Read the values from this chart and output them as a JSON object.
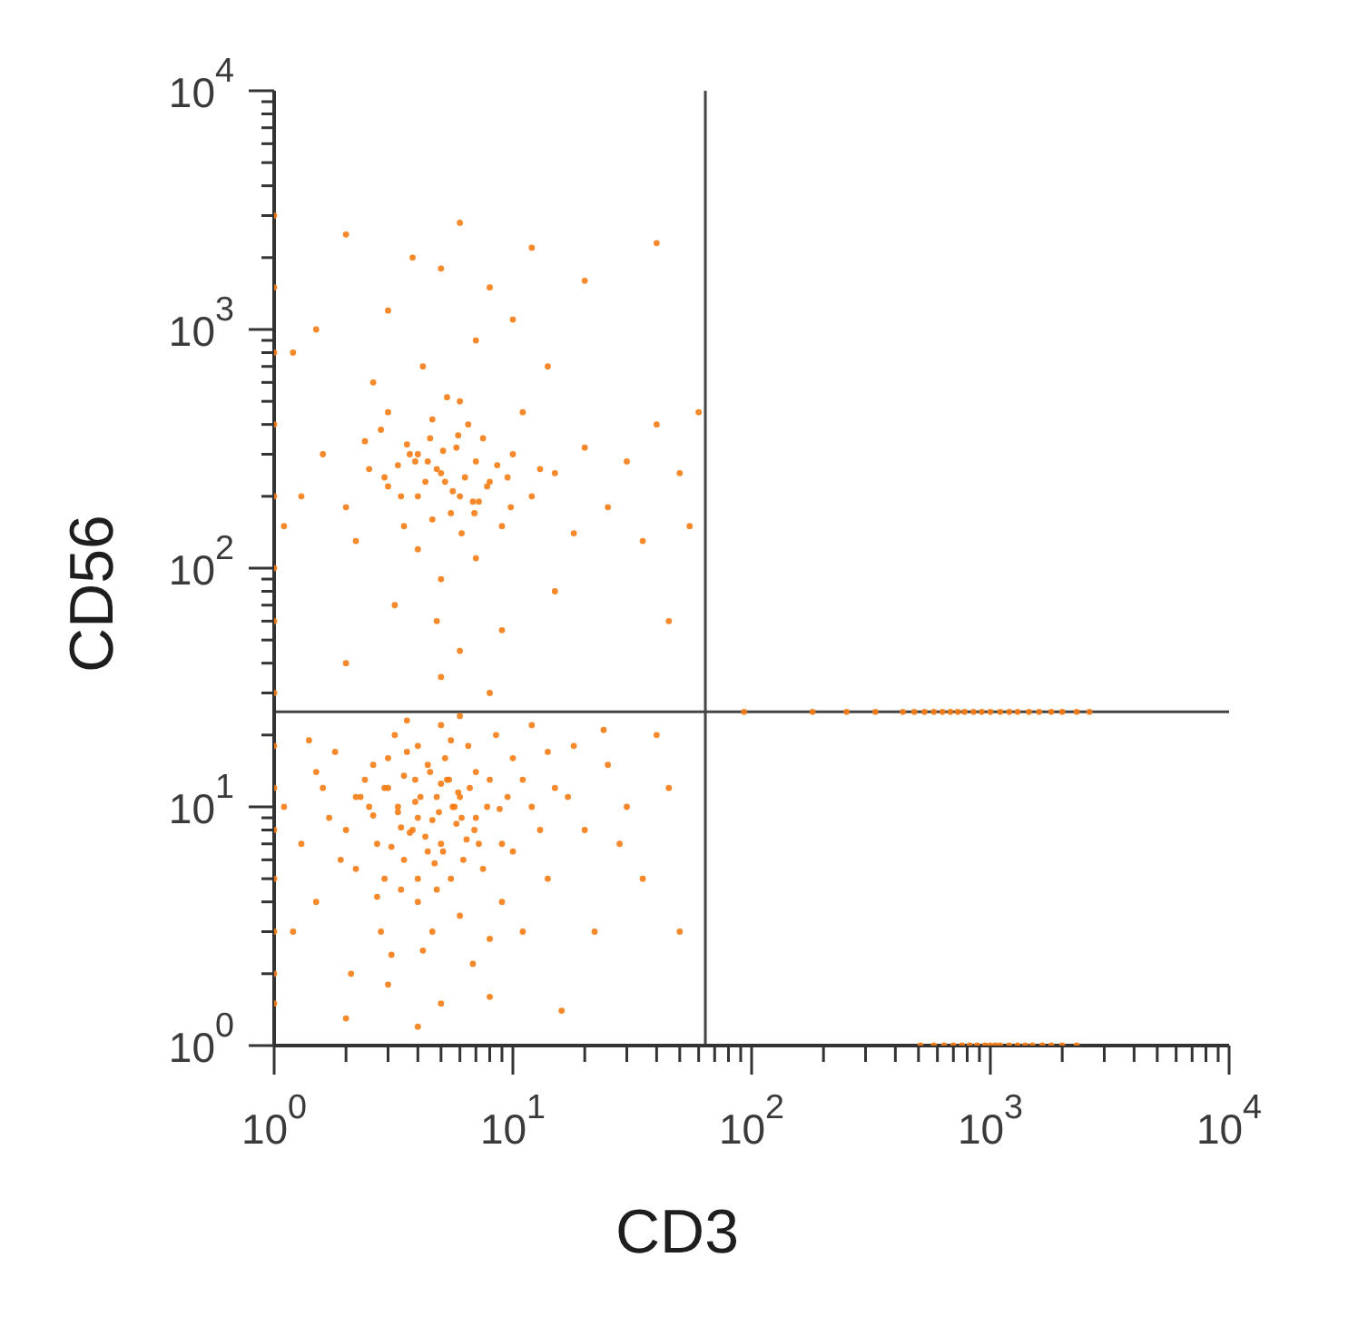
{
  "chart_data": {
    "type": "scatter",
    "xlabel": "CD3",
    "ylabel": "CD56",
    "log": "xy",
    "marker": "circle",
    "color": "#f57c14",
    "xlim": [
      1,
      10000
    ],
    "ylim": [
      1,
      10000
    ],
    "xticks": [
      {
        "value": 1,
        "label": "10$^{0}$"
      },
      {
        "value": 2,
        "label": null
      },
      {
        "value": 3,
        "label": null
      },
      {
        "value": 4,
        "label": null
      },
      {
        "value": 5,
        "label": null
      },
      {
        "value": 6,
        "label": null
      },
      {
        "value": 7,
        "label": null
      },
      {
        "value": 8,
        "label": null
      },
      {
        "value": 9,
        "label": null
      },
      {
        "value": 10,
        "label": "10$^{1}$"
      },
      {
        "value": 20,
        "label": null
      },
      {
        "value": 30,
        "label": null
      },
      {
        "value": 40,
        "label": null
      },
      {
        "value": 50,
        "label": null
      },
      {
        "value": 60,
        "label": null
      },
      {
        "value": 70,
        "label": null
      },
      {
        "value": 80,
        "label": null
      },
      {
        "value": 90,
        "label": null
      },
      {
        "value": 100,
        "label": "10$^{2}$"
      },
      {
        "value": 200,
        "label": null
      },
      {
        "value": 300,
        "label": null
      },
      {
        "value": 400,
        "label": null
      },
      {
        "value": 500,
        "label": null
      },
      {
        "value": 600,
        "label": null
      },
      {
        "value": 700,
        "label": null
      },
      {
        "value": 800,
        "label": null
      },
      {
        "value": 900,
        "label": null
      },
      {
        "value": 1000,
        "label": "10$^{3}$"
      },
      {
        "value": 2000,
        "label": null
      },
      {
        "value": 3000,
        "label": null
      },
      {
        "value": 4000,
        "label": null
      },
      {
        "value": 5000,
        "label": null
      },
      {
        "value": 6000,
        "label": null
      },
      {
        "value": 7000,
        "label": null
      },
      {
        "value": 8000,
        "label": null
      },
      {
        "value": 9000,
        "label": null
      },
      {
        "value": 10000,
        "label": "10$^{4}$"
      }
    ],
    "yticks": [
      {
        "value": 1,
        "label": "10$^{0}$"
      },
      {
        "value": 2,
        "label": null
      },
      {
        "value": 3,
        "label": null
      },
      {
        "value": 4,
        "label": null
      },
      {
        "value": 5,
        "label": null
      },
      {
        "value": 6,
        "label": null
      },
      {
        "value": 7,
        "label": null
      },
      {
        "value": 8,
        "label": null
      },
      {
        "value": 9,
        "label": null
      },
      {
        "value": 10,
        "label": "10$^{1}$"
      },
      {
        "value": 20,
        "label": null
      },
      {
        "value": 30,
        "label": null
      },
      {
        "value": 40,
        "label": null
      },
      {
        "value": 50,
        "label": null
      },
      {
        "value": 60,
        "label": null
      },
      {
        "value": 70,
        "label": null
      },
      {
        "value": 80,
        "label": null
      },
      {
        "value": 90,
        "label": null
      },
      {
        "value": 100,
        "label": "10$^{2}$"
      },
      {
        "value": 200,
        "label": null
      },
      {
        "value": 300,
        "label": null
      },
      {
        "value": 400,
        "label": null
      },
      {
        "value": 500,
        "label": null
      },
      {
        "value": 600,
        "label": null
      },
      {
        "value": 700,
        "label": null
      },
      {
        "value": 800,
        "label": null
      },
      {
        "value": 900,
        "label": null
      },
      {
        "value": 1000,
        "label": "10$^{3}$"
      },
      {
        "value": 2000,
        "label": null
      },
      {
        "value": 3000,
        "label": null
      },
      {
        "value": 4000,
        "label": null
      },
      {
        "value": 5000,
        "label": null
      },
      {
        "value": 6000,
        "label": null
      },
      {
        "value": 7000,
        "label": null
      },
      {
        "value": 8000,
        "label": null
      },
      {
        "value": 9000,
        "label": null
      },
      {
        "value": 10000,
        "label": "10$^{4}$"
      }
    ],
    "x": [
      4,
      3,
      5,
      2.5,
      6,
      3.5,
      4.5,
      2,
      7,
      5.5,
      3,
      8,
      1.6,
      4,
      6.5,
      2.2,
      9,
      3.2,
      5,
      12,
      1.3,
      2.8,
      6,
      10,
      15,
      1.8,
      4.2,
      7.5,
      3.8,
      4.8,
      2.4,
      5.2,
      8.5,
      1.1,
      3,
      5,
      6.8,
      20,
      25,
      14,
      18,
      11,
      1.5,
      2.1,
      9.5,
      4.4,
      3.3,
      5.8,
      2.7,
      7,
      1.4,
      12,
      30,
      35,
      40,
      22,
      16,
      4,
      2,
      8,
      6,
      3.6,
      1.2,
      10,
      13,
      2.6,
      5.4,
      4.6,
      3.4,
      6.2,
      7.8,
      1.7,
      2.3,
      9,
      11,
      17,
      28,
      45,
      50,
      4,
      2.9,
      5.6,
      3.9,
      4.3,
      6.6,
      1.9,
      3.1,
      8,
      14,
      24,
      3.7,
      4.9,
      5.1,
      2.9,
      4.1,
      3.4,
      6.1,
      5.3,
      4.7,
      3.9,
      2.6,
      7.2,
      4.4,
      5.9,
      3.1,
      4.6,
      5.7,
      3.5,
      6.4,
      2.2,
      4,
      5,
      3.6,
      6.9,
      2.7,
      8.8,
      1.5,
      4.8,
      3.3,
      5.5,
      5,
      4,
      6,
      3,
      7,
      5.5,
      4.5,
      2.5,
      8,
      3.5,
      6.5,
      10,
      12,
      2,
      9,
      4,
      6,
      15,
      20,
      1.6,
      3,
      5,
      7,
      2.2,
      11,
      25,
      30,
      1.3,
      4.2,
      3,
      5,
      2,
      8,
      6,
      1.5,
      10,
      3.8,
      7,
      2.6,
      14,
      4.8,
      3.2,
      6,
      9,
      2,
      15,
      5,
      8,
      35,
      45,
      40,
      50,
      18,
      4,
      5.8,
      3.3,
      6.8,
      4.6,
      7.5,
      2.8,
      9.5,
      5.2,
      4.4,
      3.6,
      1.1,
      1.2,
      12,
      20,
      40,
      60,
      55,
      5.6,
      4.8,
      6.3,
      3.9,
      7.2,
      5.1,
      4.3,
      6.9,
      3.4,
      5.9,
      8.6,
      2.9,
      4.6,
      6.1,
      7.8,
      3.7,
      5.3,
      9.8,
      2.4,
      13,
      1,
      1,
      1,
      1,
      1,
      1,
      1,
      1,
      1,
      1,
      1,
      1,
      1,
      1,
      1,
      93,
      180,
      250,
      330,
      430,
      480,
      530,
      580,
      630,
      680,
      730,
      780,
      850,
      920,
      1000,
      1100,
      1200,
      1300,
      1450,
      1600,
      1800,
      2000,
      2300,
      2600,
      510,
      580,
      640,
      700,
      760,
      820,
      880,
      950,
      1000,
      1050,
      1100,
      1200,
      1300,
      1400,
      1500,
      1650,
      1800,
      2000,
      2300
    ],
    "values": [
      9,
      12,
      7,
      10,
      11,
      6,
      14,
      8,
      9,
      5,
      16,
      13,
      12,
      4,
      18,
      5.5,
      7,
      20,
      22,
      10,
      7,
      3,
      3.5,
      16,
      12,
      17,
      2.5,
      5.5,
      8,
      11,
      13,
      16,
      20,
      10,
      1.8,
      1.5,
      2.2,
      8,
      15,
      5,
      18,
      3,
      4,
      2,
      11,
      6.5,
      9.5,
      8.5,
      7,
      14,
      19,
      22,
      10,
      5,
      20,
      3,
      1.4,
      1.2,
      1.3,
      1.6,
      24,
      23,
      3,
      6.5,
      8,
      15,
      13,
      3,
      4.5,
      6,
      10,
      9,
      11,
      4,
      13,
      11,
      7,
      12,
      3,
      18,
      5,
      10,
      13,
      7.5,
      12,
      6,
      2.4,
      2.8,
      17,
      21,
      7.8,
      9.5,
      6.5,
      12,
      11,
      8.2,
      9,
      13,
      5.8,
      10.5,
      9.2,
      7,
      15,
      11.5,
      6.8,
      8.8,
      10,
      13.5,
      7.3,
      11,
      5,
      12.5,
      17,
      8,
      4.2,
      9.8,
      14,
      4.5,
      10,
      19,
      250,
      300,
      200,
      220,
      280,
      170,
      350,
      260,
      230,
      150,
      400,
      300,
      200,
      180,
      150,
      120,
      500,
      250,
      320,
      300,
      450,
      90,
      110,
      130,
      450,
      180,
      280,
      200,
      700,
      1200,
      1800,
      2500,
      1500,
      2800,
      1000,
      1100,
      2000,
      900,
      600,
      700,
      60,
      70,
      45,
      55,
      40,
      80,
      35,
      30,
      130,
      60,
      400,
      250,
      140,
      200,
      320,
      270,
      190,
      160,
      350,
      380,
      240,
      230,
      280,
      330,
      150,
      800,
      2200,
      1600,
      2300,
      450,
      150,
      210,
      260,
      240,
      280,
      190,
      310,
      230,
      170,
      200,
      360,
      270,
      240,
      420,
      140,
      220,
      300,
      520,
      180,
      340,
      260,
      1.5,
      2,
      3,
      5,
      8,
      12,
      18,
      30,
      60,
      100,
      200,
      400,
      800,
      1500,
      3000,
      25,
      25,
      25,
      25,
      25,
      25,
      25,
      25,
      25,
      25,
      25,
      25,
      25,
      25,
      25,
      25,
      25,
      25,
      25,
      25,
      25,
      25,
      25,
      25,
      1,
      1,
      1,
      1,
      1,
      1,
      1,
      1,
      1,
      1,
      1,
      1,
      1,
      1,
      1,
      1,
      1,
      1,
      1
    ],
    "ref_lines": [
      {
        "axis": "x",
        "value": 64,
        "color": "#444444"
      },
      {
        "axis": "y",
        "value": 25,
        "color": "#444444"
      }
    ]
  }
}
